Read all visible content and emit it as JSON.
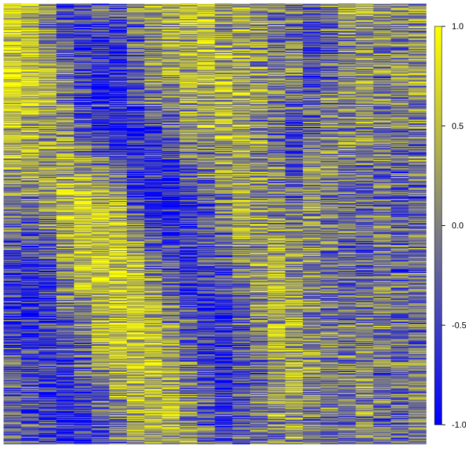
{
  "chart_data": {
    "type": "heatmap",
    "n_columns": 24,
    "n_rows": 600,
    "colorscale": {
      "min": -1.0,
      "max": 1.0,
      "low_color": "#0000ff",
      "mid_color": "#808080",
      "high_color": "#ffff00",
      "ticks": [
        1.0,
        0.5,
        0.0,
        -0.5,
        -1.0
      ],
      "tick_labels": [
        "1.0",
        "0.5",
        "0.0",
        "-0.5",
        "-1.0"
      ]
    },
    "column_band_profile": [
      {
        "row_frac": 0.0,
        "values": [
          0.6,
          0.5,
          -0.1,
          -0.6,
          -0.5,
          -0.3,
          -0.4,
          0.1,
          0.3,
          0.4,
          0.5,
          0.5,
          0.2,
          0.3,
          0.1,
          -0.1,
          -0.3,
          -0.4,
          -0.2,
          0.1,
          0.2,
          0.1,
          0.0,
          0.1
        ]
      },
      {
        "row_frac": 0.15,
        "values": [
          0.8,
          0.6,
          0.4,
          -0.2,
          -0.6,
          -0.7,
          -0.8,
          -0.3,
          0.1,
          0.3,
          0.4,
          0.4,
          0.3,
          0.3,
          0.1,
          0.0,
          0.1,
          -0.4,
          -0.2,
          0.0,
          0.1,
          0.0,
          0.1,
          0.2
        ]
      },
      {
        "row_frac": 0.3,
        "values": [
          0.5,
          0.4,
          0.3,
          0.2,
          -0.3,
          -0.6,
          -0.7,
          -0.8,
          -0.5,
          -0.3,
          0.1,
          0.2,
          0.4,
          0.3,
          0.1,
          -0.2,
          -0.5,
          -0.1,
          0.1,
          0.0,
          0.1,
          0.0,
          -0.1,
          0.0
        ]
      },
      {
        "row_frac": 0.45,
        "values": [
          0.1,
          0.0,
          0.2,
          0.5,
          0.7,
          0.5,
          0.3,
          -0.4,
          -0.8,
          -0.8,
          -0.6,
          -0.3,
          0.1,
          0.4,
          0.2,
          0.1,
          -0.1,
          0.2,
          0.0,
          -0.1,
          -0.2,
          -0.1,
          -0.3,
          -0.2
        ]
      },
      {
        "row_frac": 0.6,
        "values": [
          -0.6,
          -0.7,
          -0.5,
          0.2,
          0.5,
          0.6,
          0.6,
          0.5,
          0.1,
          -0.4,
          -0.6,
          -0.5,
          -0.4,
          0.0,
          0.3,
          0.4,
          0.2,
          0.0,
          -0.1,
          -0.2,
          -0.1,
          0.0,
          -0.2,
          -0.1
        ]
      },
      {
        "row_frac": 0.75,
        "values": [
          -0.5,
          -0.6,
          -0.6,
          -0.3,
          0.0,
          0.4,
          0.6,
          0.6,
          0.5,
          0.2,
          -0.2,
          -0.5,
          -0.6,
          -0.4,
          0.0,
          0.3,
          0.3,
          0.2,
          0.0,
          -0.1,
          0.0,
          0.0,
          -0.1,
          -0.2
        ]
      },
      {
        "row_frac": 0.9,
        "values": [
          -0.3,
          -0.4,
          -0.5,
          -0.7,
          -0.6,
          -0.2,
          0.2,
          0.4,
          0.5,
          0.4,
          0.0,
          -0.3,
          -0.5,
          -0.3,
          -0.1,
          0.2,
          0.3,
          0.1,
          0.0,
          -0.1,
          0.1,
          0.0,
          -0.2,
          -0.1
        ]
      },
      {
        "row_frac": 1.0,
        "values": [
          -0.2,
          -0.3,
          -0.4,
          -0.6,
          -0.5,
          -0.4,
          0.0,
          0.3,
          0.4,
          0.4,
          0.2,
          -0.2,
          -0.4,
          -0.3,
          -0.1,
          0.1,
          0.2,
          0.1,
          0.0,
          -0.1,
          0.0,
          0.0,
          -0.1,
          0.0
        ]
      }
    ],
    "row_noise": 0.75,
    "legend_placement": "right",
    "grid": false
  }
}
